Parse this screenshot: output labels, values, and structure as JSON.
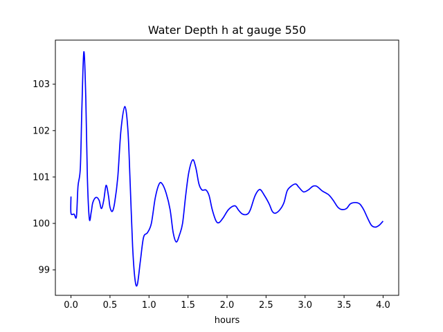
{
  "chart_data": {
    "type": "line",
    "title": "Water Depth h at gauge 550",
    "xlabel": "hours",
    "ylabel": "",
    "xlim": [
      -0.2,
      4.2
    ],
    "ylim": [
      98.45,
      103.95
    ],
    "x_ticks": [
      0.0,
      0.5,
      1.0,
      1.5,
      2.0,
      2.5,
      3.0,
      3.5,
      4.0
    ],
    "x_tick_labels": [
      "0.0",
      "0.5",
      "1.0",
      "1.5",
      "2.0",
      "2.5",
      "3.0",
      "3.5",
      "4.0"
    ],
    "y_ticks": [
      99,
      100,
      101,
      102,
      103
    ],
    "y_tick_labels": [
      "99",
      "100",
      "101",
      "102",
      "103"
    ],
    "grid": false,
    "series": [
      {
        "color": "#0000ff",
        "points": [
          [
            0.0,
            100.58
          ],
          [
            0.0,
            100.22
          ],
          [
            0.04,
            100.2
          ],
          [
            0.07,
            100.15
          ],
          [
            0.09,
            100.8
          ],
          [
            0.12,
            101.2
          ],
          [
            0.14,
            102.5
          ],
          [
            0.165,
            103.7
          ],
          [
            0.19,
            102.7
          ],
          [
            0.21,
            101.0
          ],
          [
            0.235,
            100.1
          ],
          [
            0.26,
            100.25
          ],
          [
            0.28,
            100.45
          ],
          [
            0.32,
            100.56
          ],
          [
            0.36,
            100.5
          ],
          [
            0.39,
            100.32
          ],
          [
            0.42,
            100.5
          ],
          [
            0.45,
            100.82
          ],
          [
            0.48,
            100.6
          ],
          [
            0.5,
            100.35
          ],
          [
            0.53,
            100.26
          ],
          [
            0.56,
            100.45
          ],
          [
            0.6,
            101.0
          ],
          [
            0.64,
            102.0
          ],
          [
            0.69,
            102.52
          ],
          [
            0.73,
            102.0
          ],
          [
            0.76,
            100.8
          ],
          [
            0.79,
            99.5
          ],
          [
            0.82,
            98.8
          ],
          [
            0.85,
            98.68
          ],
          [
            0.89,
            99.2
          ],
          [
            0.93,
            99.7
          ],
          [
            0.98,
            99.8
          ],
          [
            1.03,
            100.0
          ],
          [
            1.08,
            100.55
          ],
          [
            1.13,
            100.85
          ],
          [
            1.17,
            100.85
          ],
          [
            1.22,
            100.65
          ],
          [
            1.27,
            100.3
          ],
          [
            1.31,
            99.8
          ],
          [
            1.35,
            99.6
          ],
          [
            1.39,
            99.75
          ],
          [
            1.43,
            100.0
          ],
          [
            1.47,
            100.6
          ],
          [
            1.51,
            101.1
          ],
          [
            1.56,
            101.37
          ],
          [
            1.6,
            101.2
          ],
          [
            1.64,
            100.85
          ],
          [
            1.68,
            100.72
          ],
          [
            1.73,
            100.72
          ],
          [
            1.77,
            100.6
          ],
          [
            1.81,
            100.3
          ],
          [
            1.86,
            100.05
          ],
          [
            1.9,
            100.02
          ],
          [
            1.95,
            100.12
          ],
          [
            2.02,
            100.3
          ],
          [
            2.1,
            100.38
          ],
          [
            2.15,
            100.28
          ],
          [
            2.2,
            100.2
          ],
          [
            2.26,
            100.2
          ],
          [
            2.3,
            100.3
          ],
          [
            2.36,
            100.6
          ],
          [
            2.42,
            100.73
          ],
          [
            2.48,
            100.6
          ],
          [
            2.54,
            100.42
          ],
          [
            2.58,
            100.26
          ],
          [
            2.62,
            100.22
          ],
          [
            2.68,
            100.3
          ],
          [
            2.73,
            100.45
          ],
          [
            2.77,
            100.7
          ],
          [
            2.82,
            100.8
          ],
          [
            2.88,
            100.85
          ],
          [
            2.92,
            100.78
          ],
          [
            2.98,
            100.68
          ],
          [
            3.04,
            100.72
          ],
          [
            3.1,
            100.8
          ],
          [
            3.15,
            100.8
          ],
          [
            3.22,
            100.7
          ],
          [
            3.3,
            100.62
          ],
          [
            3.36,
            100.5
          ],
          [
            3.42,
            100.35
          ],
          [
            3.47,
            100.3
          ],
          [
            3.53,
            100.32
          ],
          [
            3.58,
            100.42
          ],
          [
            3.64,
            100.45
          ],
          [
            3.7,
            100.42
          ],
          [
            3.75,
            100.3
          ],
          [
            3.8,
            100.12
          ],
          [
            3.85,
            99.96
          ],
          [
            3.9,
            99.92
          ],
          [
            3.95,
            99.96
          ],
          [
            4.0,
            100.05
          ]
        ]
      }
    ]
  }
}
